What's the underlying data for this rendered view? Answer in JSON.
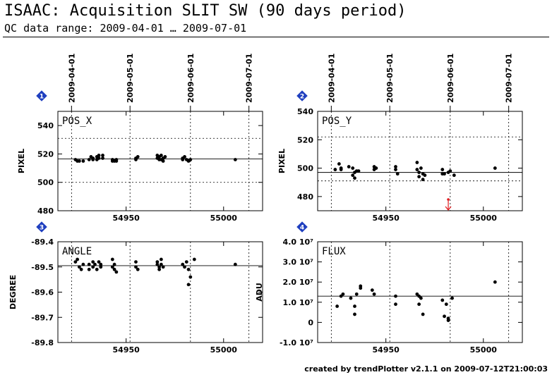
{
  "header": {
    "title": "ISAAC: Acquisition SLIT SW (90 days period)",
    "subtitle": "QC data range: 2009-04-01 … 2009-07-01"
  },
  "footer": {
    "credit": "created by trendPlotter v2.1.1 on 2009-07-12T21:00:03"
  },
  "colors": {
    "badge": "#1f3fbf",
    "outlier_arrow": "#e0181c",
    "points": "#000000"
  },
  "date_axis": {
    "labels": [
      "2009-04-01",
      "2009-05-01",
      "2009-06-01",
      "2009-07-01"
    ],
    "mjd": [
      54922,
      54952,
      54983,
      55013
    ]
  },
  "chart_data": [
    {
      "type": "scatter",
      "badge": "1",
      "label": "POS_X",
      "ylabel": "PIXEL",
      "xlim": [
        54915,
        55020
      ],
      "ylim": [
        480,
        550
      ],
      "yticks": [
        480,
        500,
        520,
        540
      ],
      "ytick_labels": [
        "480",
        "500",
        "520",
        "540"
      ],
      "xticks": [
        54950,
        55000
      ],
      "xtick_labels": [
        "54950",
        "55000"
      ],
      "reference": 516.5,
      "dotted_levels": [
        500,
        531
      ],
      "x": [
        54924,
        54925,
        54926,
        54928,
        54931,
        54932,
        54933,
        54933,
        54935,
        54935,
        54936,
        54936,
        54938,
        54938,
        54943,
        54943,
        54944,
        54945,
        54945,
        54955,
        54955,
        54956,
        54966,
        54966,
        54967,
        54967,
        54968,
        54968,
        54969,
        54969,
        54970,
        54979,
        54979,
        54980,
        54981,
        54982,
        54983,
        55006
      ],
      "y": [
        516,
        515,
        515,
        515,
        516,
        518,
        517,
        516,
        518,
        516,
        519,
        517,
        519,
        517,
        516,
        515,
        515,
        516,
        515,
        517,
        516,
        518,
        519,
        517,
        518,
        516,
        519,
        516,
        517,
        515,
        518,
        517,
        516,
        518,
        516,
        515,
        516,
        516
      ]
    },
    {
      "type": "scatter",
      "badge": "2",
      "label": "POS_Y",
      "ylabel": "PIXEL",
      "xlim": [
        54915,
        55020
      ],
      "ylim": [
        470,
        540
      ],
      "yticks": [
        480,
        500,
        520,
        540
      ],
      "ytick_labels": [
        "480",
        "500",
        "520",
        "540"
      ],
      "xticks": [
        54950,
        55000
      ],
      "xtick_labels": [
        "54950",
        "55000"
      ],
      "reference": 497,
      "dotted_levels": [
        491,
        522
      ],
      "x": [
        54924,
        54926,
        54927,
        54927,
        54931,
        54933,
        54933,
        54934,
        54934,
        54935,
        54936,
        54944,
        54944,
        54945,
        54955,
        54955,
        54956,
        54966,
        54966,
        54967,
        54967,
        54968,
        54969,
        54969,
        54970,
        54979,
        54979,
        54980,
        54982,
        54983,
        54985,
        55006
      ],
      "y": [
        499,
        503,
        500,
        499,
        501,
        500,
        495,
        493,
        497,
        498,
        498,
        501,
        499,
        500,
        501,
        499,
        496,
        504,
        499,
        497,
        494,
        500,
        492,
        496,
        495,
        496,
        499,
        496,
        497,
        498,
        495,
        500
      ],
      "outlier_marker_x": 54982
    },
    {
      "type": "scatter",
      "badge": "3",
      "label": "ANGLE",
      "ylabel": "DEGREE",
      "xlim": [
        54915,
        55020
      ],
      "ylim": [
        -89.8,
        -89.4
      ],
      "yticks": [
        -89.8,
        -89.7,
        -89.6,
        -89.5,
        -89.4
      ],
      "ytick_labels": [
        "-89.8",
        "-89.7",
        "-89.6",
        "-89.5",
        "-89.4"
      ],
      "xticks": [
        54950,
        55000
      ],
      "xtick_labels": [
        "54950",
        "55000"
      ],
      "reference": -89.495,
      "dotted_levels": [],
      "x": [
        54924,
        54925,
        54926,
        54927,
        54928,
        54931,
        54931,
        54933,
        54933,
        54934,
        54935,
        54936,
        54937,
        54937,
        54943,
        54943,
        54944,
        54944,
        54945,
        54955,
        54955,
        54956,
        54966,
        54966,
        54967,
        54967,
        54968,
        54968,
        54969,
        54979,
        54980,
        54981,
        54982,
        54982,
        54983,
        54985,
        55006
      ],
      "y": [
        -89.48,
        -89.47,
        -89.5,
        -89.51,
        -89.49,
        -89.49,
        -89.51,
        -89.48,
        -89.5,
        -89.49,
        -89.51,
        -89.48,
        -89.5,
        -89.49,
        -89.47,
        -89.5,
        -89.51,
        -89.49,
        -89.52,
        -89.48,
        -89.5,
        -89.51,
        -89.49,
        -89.48,
        -89.51,
        -89.5,
        -89.49,
        -89.47,
        -89.5,
        -89.49,
        -89.5,
        -89.48,
        -89.51,
        -89.57,
        -89.54,
        -89.47,
        -89.49
      ]
    },
    {
      "type": "scatter",
      "badge": "4",
      "label": "FLUX",
      "ylabel": "ADU",
      "xlim": [
        54915,
        55020
      ],
      "ylim": [
        -10000000,
        40000000
      ],
      "yticks": [
        -10000000,
        0,
        10000000,
        20000000,
        30000000,
        40000000
      ],
      "ytick_labels": [
        "-1.0 10⁷",
        "0",
        "1.0 10⁷",
        "2.0 10⁷",
        "3.0 10⁷",
        "4.0 10⁷"
      ],
      "xticks": [
        54950,
        55000
      ],
      "xtick_labels": [
        "54950",
        "55000"
      ],
      "reference": 13000000,
      "dotted_levels": [],
      "x": [
        54925,
        54927,
        54928,
        54932,
        54934,
        54934,
        54935,
        54937,
        54937,
        54943,
        54944,
        54955,
        54955,
        54966,
        54967,
        54967,
        54968,
        54969,
        54979,
        54980,
        54981,
        54982,
        54982,
        54984,
        55006
      ],
      "y": [
        8000000,
        13000000,
        14000000,
        12000000,
        8000000,
        4000000,
        14000000,
        17000000,
        18000000,
        16000000,
        14000000,
        13000000,
        9000000,
        14000000,
        13000000,
        9000000,
        12000000,
        4000000,
        11000000,
        3000000,
        9000000,
        2000000,
        1000000,
        12000000,
        20000000
      ]
    }
  ]
}
